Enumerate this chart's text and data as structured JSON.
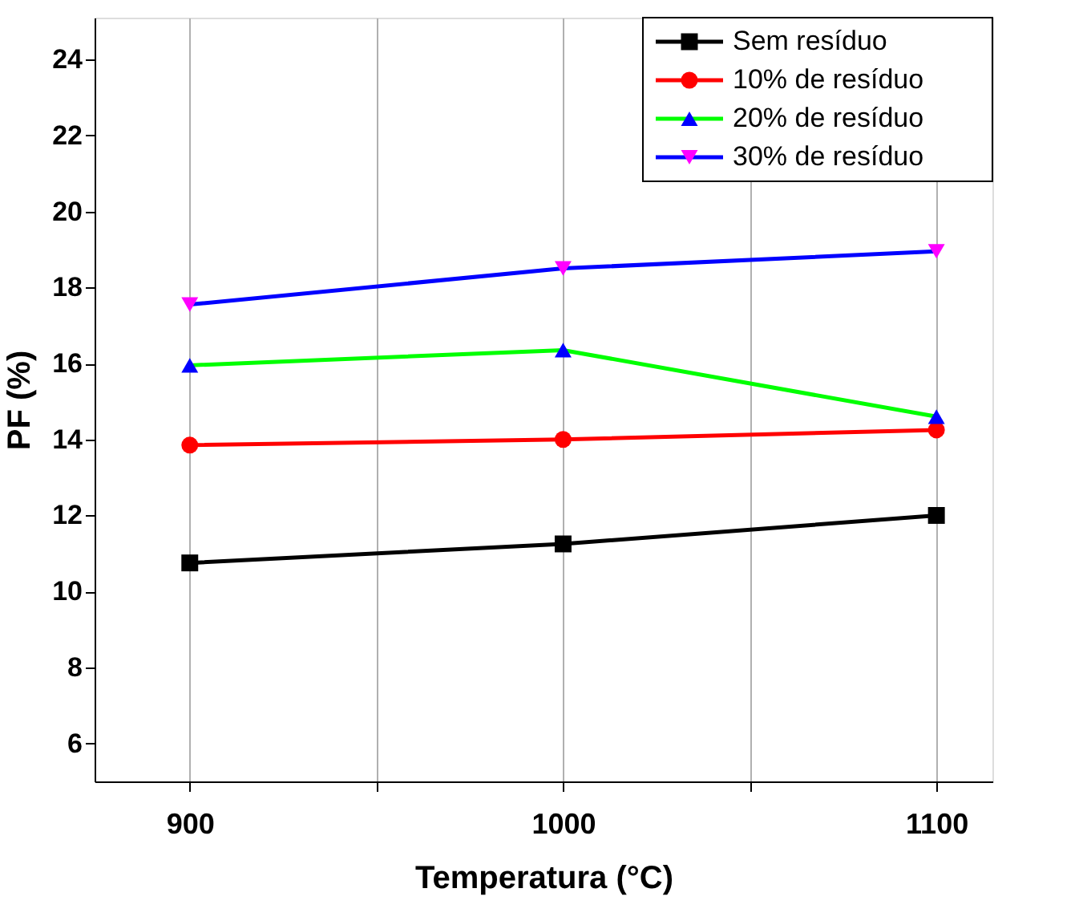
{
  "chart_data": {
    "type": "line",
    "xlabel": "Temperatura (°C)",
    "ylabel": "PF (%)",
    "x": [
      900,
      1000,
      1100
    ],
    "xlim": [
      874.5,
      1115
    ],
    "xticks": [
      900,
      {
        "value": 950,
        "label": null
      },
      1000,
      {
        "value": 1050,
        "label": null
      },
      1100
    ],
    "ylim": [
      5,
      25.1
    ],
    "yticks": [
      6,
      8,
      10,
      12,
      14,
      16,
      18,
      20,
      22,
      24
    ],
    "grid": "x",
    "legend": "top right",
    "line_style": "solid",
    "series": [
      {
        "name": "Sem resíduo",
        "color": "#000000",
        "colors": [
          "#000000",
          "#000000",
          "#000000"
        ],
        "marker": "square",
        "values": [
          10.75,
          11.25,
          12.0
        ]
      },
      {
        "name": "10% de resíduo",
        "color": "#ff0000",
        "colors": [
          "#ff0000",
          "#ff0000",
          "#ff0000"
        ],
        "marker": "circle",
        "values": [
          13.85,
          14.0,
          14.25
        ]
      },
      {
        "name": "20% de resíduo",
        "color": "#00ff00",
        "colors": [
          "#0000ff",
          "#0000ff",
          "#0000ff"
        ],
        "marker": "triangle",
        "values": [
          15.95,
          16.35,
          14.6
        ]
      },
      {
        "name": "30% de resíduo",
        "color": "#0000ff",
        "colors": [
          "#ff00ff",
          "#ff00ff",
          "#ff00ff"
        ],
        "marker": "triangle-down",
        "values": [
          17.55,
          18.5,
          18.95
        ]
      }
    ]
  }
}
